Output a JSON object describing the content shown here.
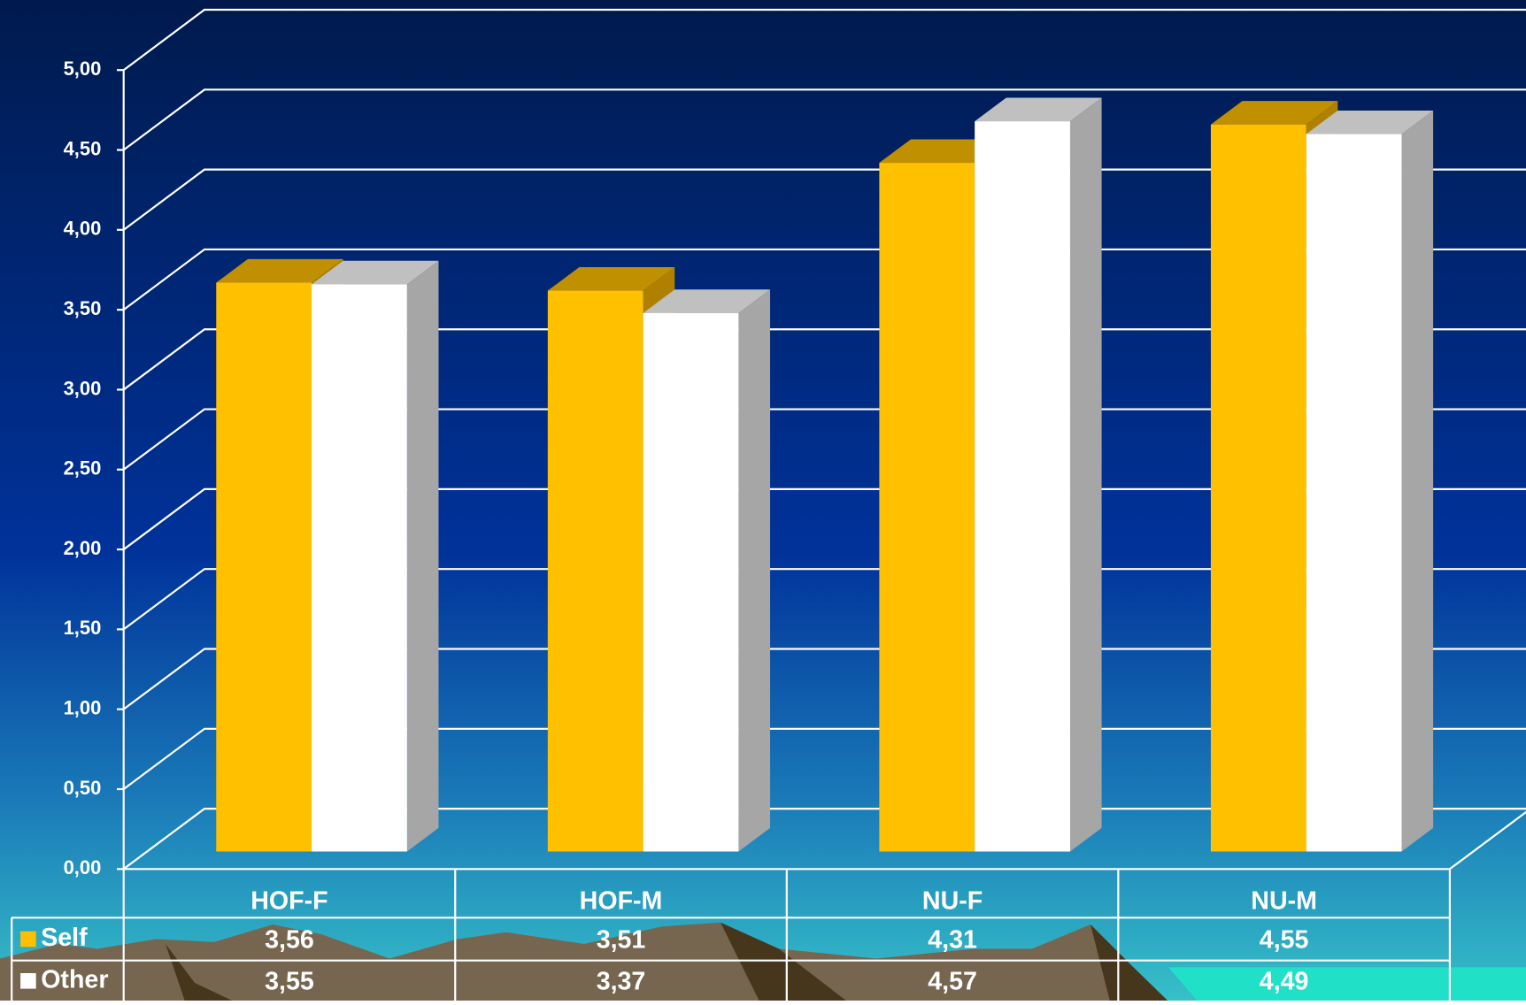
{
  "chart_data": {
    "type": "bar3d",
    "categories": [
      "HOF-F",
      "HOF-M",
      "NU-F",
      "NU-M"
    ],
    "series": [
      {
        "name": "Self",
        "color": "#FFC000",
        "values": [
          3.56,
          3.51,
          4.31,
          4.55
        ],
        "value_labels": [
          "3,56",
          "3,51",
          "4,31",
          "4,55"
        ]
      },
      {
        "name": "Other",
        "color": "#FFFFFF",
        "values": [
          3.55,
          3.37,
          4.57,
          4.49
        ],
        "value_labels": [
          "3,55",
          "3,37",
          "4,57",
          "4,49"
        ]
      }
    ],
    "ylim": [
      0,
      5
    ],
    "yticks": [
      {
        "value": 0,
        "label": "0,00"
      },
      {
        "value": 0.5,
        "label": "0,50"
      },
      {
        "value": 1,
        "label": "1,00"
      },
      {
        "value": 1.5,
        "label": "1,50"
      },
      {
        "value": 2,
        "label": "2,00"
      },
      {
        "value": 2.5,
        "label": "2,50"
      },
      {
        "value": 3,
        "label": "3,00"
      },
      {
        "value": 3.5,
        "label": "3,50"
      },
      {
        "value": 4,
        "label": "4,00"
      },
      {
        "value": 4.5,
        "label": "4,50"
      },
      {
        "value": 5,
        "label": "5,00"
      }
    ],
    "grid": true
  }
}
